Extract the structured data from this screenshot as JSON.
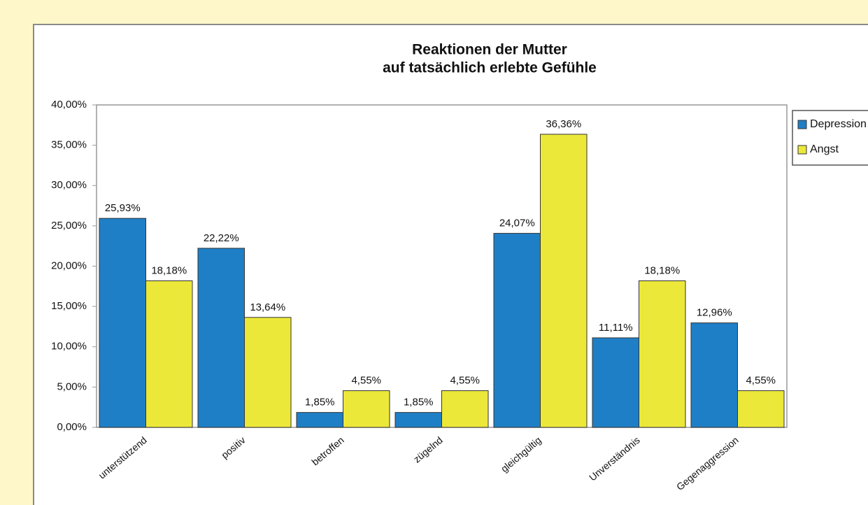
{
  "chart_data": {
    "type": "bar",
    "title": "Reaktionen der Mutter",
    "subtitle": "auf tatsächlich erlebte Gefühle",
    "categories": [
      "unterstützend",
      "positiv",
      "betroffen",
      "zügelnd",
      "gleichgültig",
      "Unverständnis",
      "Gegenaggression"
    ],
    "series": [
      {
        "name": "Depression",
        "color": "#1f7fc6",
        "values": [
          25.93,
          22.22,
          1.85,
          1.85,
          24.07,
          11.11,
          12.96
        ],
        "value_labels": [
          "25,93%",
          "22,22%",
          "1,85%",
          "1,85%",
          "24,07%",
          "11,11%",
          "12,96%"
        ]
      },
      {
        "name": "Angst",
        "color": "#ece83a",
        "values": [
          18.18,
          13.64,
          4.55,
          4.55,
          36.36,
          18.18,
          4.55
        ],
        "value_labels": [
          "18,18%",
          "13,64%",
          "4,55%",
          "4,55%",
          "36,36%",
          "18,18%",
          "4,55%"
        ]
      }
    ],
    "ylim": [
      0,
      40
    ],
    "yticks": [
      {
        "value": 0,
        "label": "0,00%"
      },
      {
        "value": 5,
        "label": "5,00%"
      },
      {
        "value": 10,
        "label": "10,00%"
      },
      {
        "value": 15,
        "label": "15,00%"
      },
      {
        "value": 20,
        "label": "20,00%"
      },
      {
        "value": 25,
        "label": "25,00%"
      },
      {
        "value": 30,
        "label": "30,00%"
      },
      {
        "value": 35,
        "label": "35,00%"
      },
      {
        "value": 40,
        "label": "40,00%"
      }
    ],
    "grid": false,
    "legend": "right"
  }
}
